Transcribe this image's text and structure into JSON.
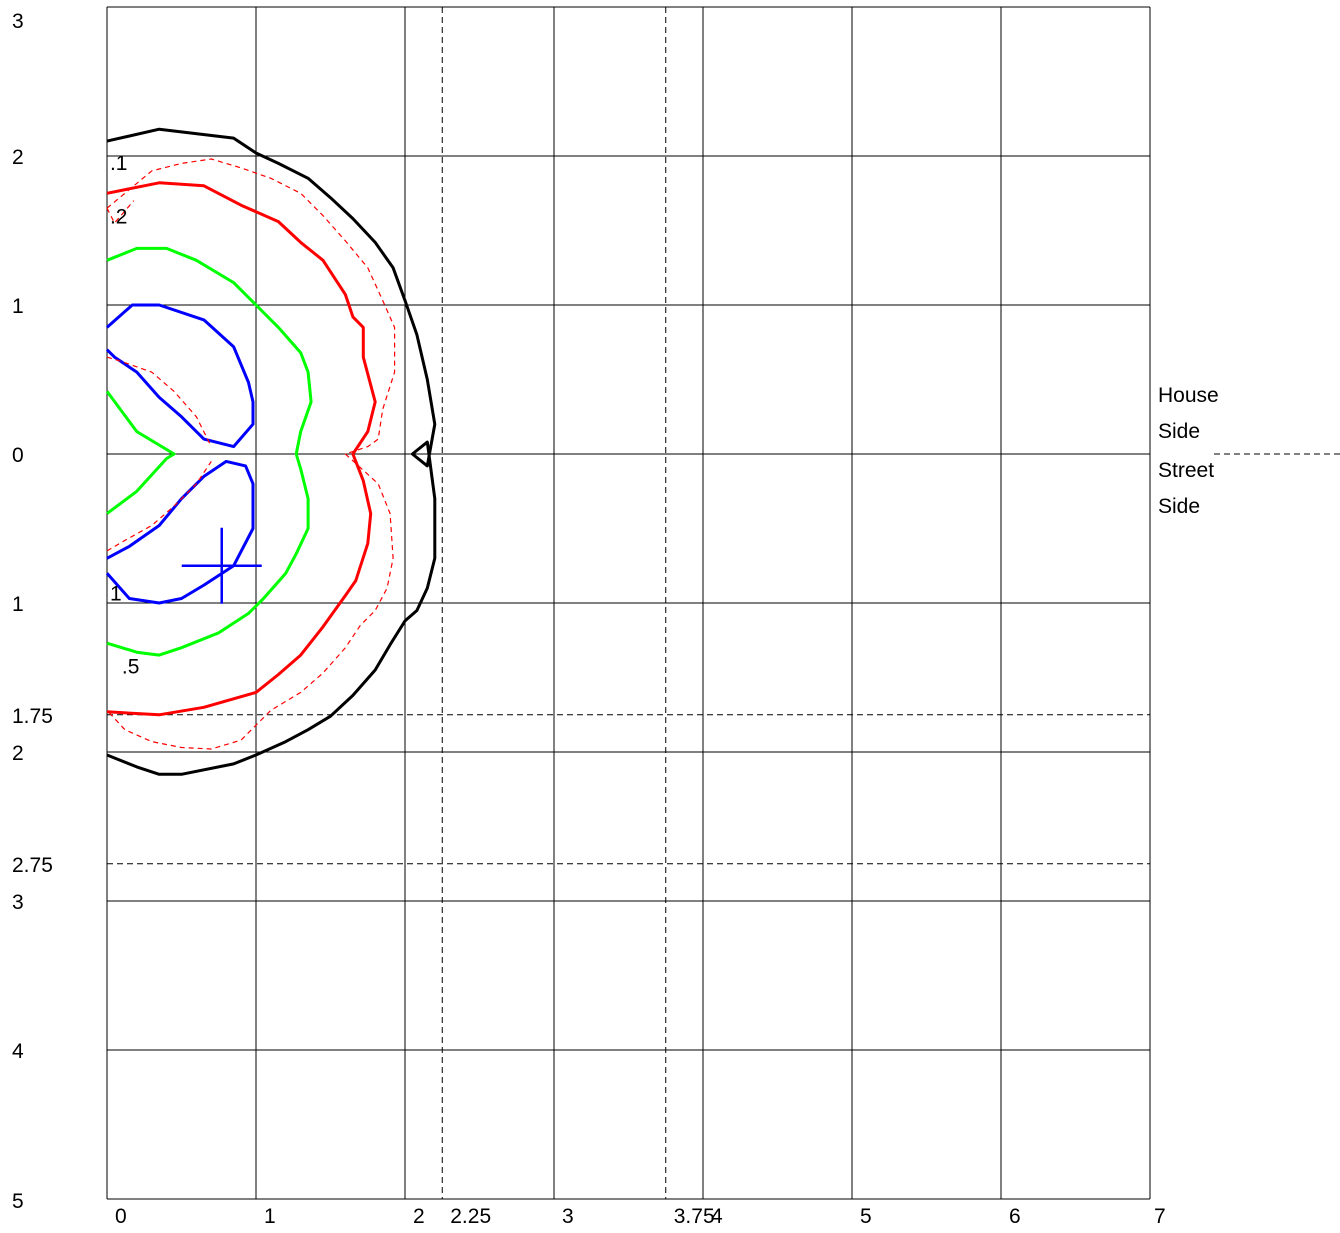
{
  "chart_data": {
    "type": "line",
    "title": "",
    "xlabel": "",
    "ylabel": "",
    "xlim": [
      0,
      7
    ],
    "ylim": [
      -5,
      3
    ],
    "grid": true,
    "x_ticks": [
      {
        "value": 0,
        "label": "0"
      },
      {
        "value": 1,
        "label": "1"
      },
      {
        "value": 2,
        "label": "2"
      },
      {
        "value": 2.25,
        "label": "2.25"
      },
      {
        "value": 3,
        "label": "3"
      },
      {
        "value": 3.75,
        "label": "3.75"
      },
      {
        "value": 4,
        "label": "4"
      },
      {
        "value": 5,
        "label": "5"
      },
      {
        "value": 6,
        "label": "6"
      },
      {
        "value": 7,
        "label": "7"
      }
    ],
    "y_ticks": [
      {
        "value": 3,
        "label": "3"
      },
      {
        "value": 2,
        "label": "2"
      },
      {
        "value": 1,
        "label": "1"
      },
      {
        "value": 0,
        "label": "0"
      },
      {
        "value": -1,
        "label": "1"
      },
      {
        "value": -1.75,
        "label": "1.75"
      },
      {
        "value": -2,
        "label": "2"
      },
      {
        "value": -2.75,
        "label": "2.75"
      },
      {
        "value": -3,
        "label": "3"
      },
      {
        "value": -4,
        "label": "4"
      },
      {
        "value": -5,
        "label": "5"
      }
    ],
    "x_gridlines": [
      0,
      1,
      2,
      3,
      4,
      5,
      6,
      7
    ],
    "y_gridlines": [
      3,
      2,
      1,
      0,
      -1,
      -2,
      -3,
      -4,
      -5
    ],
    "dashed_vertical_lines": [
      2.25,
      3.75
    ],
    "dashed_horizontal_lines": [
      -1.75,
      -2.75,
      0
    ],
    "side_labels": {
      "above_zero": [
        "House",
        "Side"
      ],
      "below_zero": [
        "Street",
        "Side"
      ]
    },
    "series": [
      {
        "color": "#000000",
        "width": 3,
        "dash": false,
        "x": [
          0,
          0.35,
          0.85,
          1.0,
          1.15,
          1.35,
          1.5,
          1.65,
          1.8,
          1.92,
          2.0,
          2.08,
          2.15,
          2.2,
          2.15,
          2.05,
          2.15,
          2.2,
          2.2,
          2.15,
          2.08,
          2.0,
          1.9,
          1.8,
          1.65,
          1.5,
          1.35,
          1.2,
          1.0,
          0.85,
          0.5,
          0.35,
          0.2,
          0
        ],
        "y": [
          2.1,
          2.18,
          2.12,
          2.02,
          1.95,
          1.85,
          1.72,
          1.58,
          1.42,
          1.25,
          1.03,
          0.8,
          0.5,
          0.2,
          -0.08,
          0,
          0.08,
          -0.3,
          -0.7,
          -0.9,
          -1.05,
          -1.12,
          -1.28,
          -1.45,
          -1.62,
          -1.76,
          -1.85,
          -1.93,
          -2.02,
          -2.08,
          -2.15,
          -2.15,
          -2.1,
          -2.02
        ]
      },
      {
        "color": "#ff0000",
        "width": 3,
        "dash": false,
        "x": [
          0,
          0.35,
          0.65,
          0.9,
          1.15,
          1.3,
          1.45,
          1.6,
          1.65,
          1.72,
          1.72,
          1.8,
          1.75,
          1.65,
          1.72,
          1.77,
          1.75,
          1.67,
          1.6,
          1.45,
          1.3,
          1.15,
          1.0,
          0.65,
          0.35,
          0
        ],
        "y": [
          1.75,
          1.82,
          1.8,
          1.67,
          1.56,
          1.42,
          1.3,
          1.07,
          0.92,
          0.85,
          0.65,
          0.35,
          0.15,
          0,
          -0.18,
          -0.4,
          -0.6,
          -0.85,
          -0.95,
          -1.16,
          -1.35,
          -1.48,
          -1.6,
          -1.7,
          -1.75,
          -1.73
        ]
      },
      {
        "color": "#ff0000",
        "width": 1.2,
        "dash": true,
        "x": [
          0,
          0.12,
          0.3,
          0.5,
          0.7,
          0.9,
          1.1,
          1.3,
          1.45,
          1.6,
          1.75,
          1.85,
          1.93,
          1.93,
          1.85,
          1.82,
          1.75,
          1.6,
          1.82,
          1.9,
          1.92,
          1.88,
          1.8,
          1.7,
          1.6,
          1.45,
          1.3,
          1.1,
          1.0,
          0.9,
          0.7,
          0.5,
          0.3,
          0.12,
          0
        ],
        "y": [
          1.65,
          1.75,
          1.9,
          1.95,
          1.98,
          1.92,
          1.85,
          1.75,
          1.6,
          1.43,
          1.25,
          1.03,
          0.85,
          0.55,
          0.3,
          0.1,
          0.05,
          0,
          -0.2,
          -0.4,
          -0.7,
          -0.9,
          -1.05,
          -1.15,
          -1.3,
          -1.47,
          -1.6,
          -1.72,
          -1.82,
          -1.92,
          -1.98,
          -1.97,
          -1.93,
          -1.85,
          -1.72
        ]
      },
      {
        "color": "#00ff00",
        "width": 3,
        "dash": false,
        "x": [
          0,
          0.2,
          0.4,
          0.6,
          0.85,
          1.0,
          1.15,
          1.3,
          1.35,
          1.37,
          1.3,
          1.27,
          1.3,
          1.35,
          1.35,
          1.27,
          1.2,
          1.05,
          0.95,
          0.75,
          0.5,
          0.35,
          0.2,
          0
        ],
        "y": [
          1.3,
          1.38,
          1.38,
          1.3,
          1.15,
          1.0,
          0.85,
          0.68,
          0.55,
          0.35,
          0.15,
          0,
          -0.1,
          -0.3,
          -0.5,
          -0.67,
          -0.8,
          -0.97,
          -1.07,
          -1.2,
          -1.3,
          -1.35,
          -1.33,
          -1.27
        ]
      },
      {
        "color": "#00ff00",
        "width": 3,
        "dash": false,
        "x": [
          0,
          0.2,
          0.4,
          0.45,
          0.4,
          0.2,
          0
        ],
        "y": [
          0.42,
          0.15,
          0.03,
          0,
          -0.03,
          -0.25,
          -0.4
        ]
      },
      {
        "color": "#0000ff",
        "width": 3,
        "dash": false,
        "x": [
          0,
          0.17,
          0.35,
          0.65,
          0.85,
          0.95,
          0.98,
          0.98,
          0.85,
          0.65,
          0.5,
          0.35,
          0.2,
          0.05,
          0
        ],
        "y": [
          0.85,
          1.0,
          1.0,
          0.9,
          0.72,
          0.48,
          0.35,
          0.2,
          0.05,
          0.1,
          0.25,
          0.38,
          0.55,
          0.65,
          0.7
        ]
      },
      {
        "color": "#0000ff",
        "width": 3,
        "dash": false,
        "x": [
          0,
          0.15,
          0.35,
          0.5,
          0.65,
          0.85,
          0.98,
          0.98,
          0.93,
          0.8,
          0.65,
          0.5,
          0.35,
          0.15,
          0
        ],
        "y": [
          -0.8,
          -0.97,
          -1.0,
          -0.97,
          -0.88,
          -0.75,
          -0.5,
          -0.2,
          -0.08,
          -0.05,
          -0.15,
          -0.3,
          -0.48,
          -0.62,
          -0.7
        ]
      },
      {
        "color": "#ff0000",
        "width": 1.2,
        "dash": true,
        "x": [
          0,
          0.1,
          0.3,
          0.45,
          0.6,
          0.7
        ],
        "y": [
          0.65,
          0.62,
          0.55,
          0.42,
          0.25,
          0.05
        ]
      },
      {
        "color": "#ff0000",
        "width": 1.2,
        "dash": true,
        "x": [
          0,
          0.12,
          0.3,
          0.45,
          0.6,
          0.7
        ],
        "y": [
          -0.65,
          -0.58,
          -0.48,
          -0.35,
          -0.2,
          -0.05
        ]
      },
      {
        "color": "#ff0000",
        "width": 1.2,
        "dash": true,
        "x": [
          0,
          0.05,
          0.18
        ],
        "y": [
          1.65,
          1.55,
          1.7
        ]
      }
    ],
    "annotations": [
      {
        "text": ".1",
        "x": 0.02,
        "y": 1.96
      },
      {
        "text": ".2",
        "x": 0.02,
        "y": 1.6
      },
      {
        "text": "1",
        "x": 0.02,
        "y": -0.93
      },
      {
        "text": ".5",
        "x": 0.1,
        "y": -1.42
      }
    ],
    "marker": {
      "x": 0.77,
      "y": -0.75,
      "color": "#0000ff",
      "shape": "plus"
    }
  }
}
